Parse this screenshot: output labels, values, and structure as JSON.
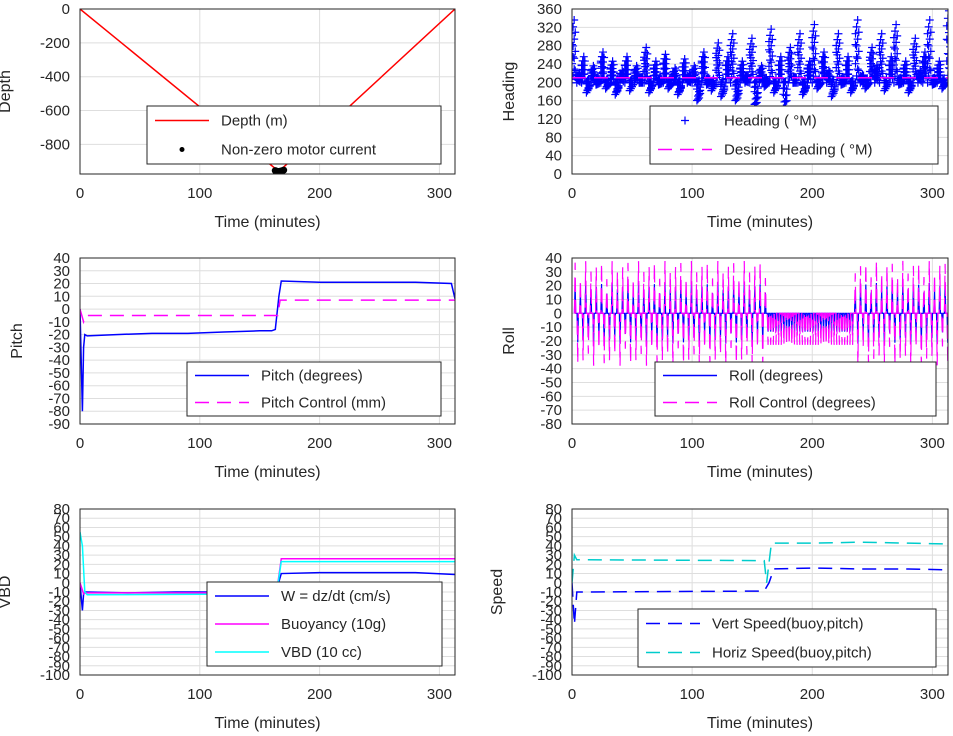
{
  "figure": {
    "background": "#ffffff",
    "axes_color": "#262626",
    "grid_color": "#dedede",
    "plot_bg": "#ffffff"
  },
  "chart_data": [
    {
      "id": "depth",
      "type": "line",
      "xlabel": "Time (minutes)",
      "ylabel": "Depth",
      "xlim": [
        0,
        313
      ],
      "ylim": [
        -975,
        0
      ],
      "xticks": [
        0,
        100,
        200,
        300
      ],
      "yticks": [
        0,
        -200,
        -400,
        -600,
        -800
      ],
      "ytick_labels": [
        "0",
        "-200",
        "-400",
        "-600",
        "-800"
      ],
      "grid": true,
      "legend_position": "bottom-center",
      "legend": [
        "Depth (m)",
        "Non-zero motor current"
      ],
      "series": [
        {
          "name": "Depth (m)",
          "style": "solid",
          "color": "#ff0000",
          "x": [
            0,
            166,
            313
          ],
          "y": [
            0,
            -960,
            0
          ]
        },
        {
          "name": "Non-zero motor current",
          "style": "dots",
          "color": "#000000",
          "x": [
            163,
            164,
            165,
            166,
            167,
            168,
            169,
            170
          ],
          "y": [
            -955,
            -958,
            -960,
            -960,
            -959,
            -957,
            -955,
            -952
          ]
        }
      ]
    },
    {
      "id": "heading",
      "type": "scatter",
      "xlabel": "Time (minutes)",
      "ylabel": "Heading",
      "xlim": [
        0,
        313
      ],
      "ylim": [
        0,
        360
      ],
      "xticks": [
        0,
        100,
        200,
        300
      ],
      "yticks": [
        0,
        40,
        80,
        120,
        160,
        200,
        240,
        280,
        320,
        360
      ],
      "ytick_labels": [
        "0",
        "40",
        "80",
        "120",
        "160",
        "200",
        "240",
        "280",
        "320",
        "360"
      ],
      "grid": true,
      "legend_position": "bottom-right",
      "legend": [
        "Heading ( °M)",
        "Desired Heading ( °M)"
      ],
      "series": [
        {
          "name": "Heading ( °M)",
          "style": "plus",
          "color": "#0000ff",
          "x": [
            0,
            4,
            8,
            12,
            16,
            20,
            24,
            28,
            32,
            36,
            40,
            44,
            48,
            52,
            56,
            60,
            64,
            68,
            72,
            76,
            80,
            84,
            88,
            92,
            96,
            100,
            104,
            108,
            112,
            116,
            120,
            124,
            128,
            132,
            136,
            140,
            144,
            148,
            152,
            156,
            160,
            164,
            168,
            172,
            176,
            180,
            184,
            188,
            192,
            196,
            200,
            204,
            208,
            212,
            216,
            220,
            224,
            228,
            232,
            236,
            240,
            244,
            248,
            252,
            256,
            260,
            264,
            268,
            272,
            276,
            280,
            284,
            288,
            292,
            296,
            300,
            304,
            308,
            312
          ],
          "y": [
            330,
            215,
            250,
            180,
            230,
            200,
            260,
            190,
            240,
            175,
            220,
            250,
            185,
            230,
            205,
            270,
            180,
            240,
            200,
            255,
            190,
            225,
            175,
            245,
            210,
            230,
            160,
            260,
            200,
            185,
            280,
            170,
            250,
            300,
            160,
            240,
            210,
            290,
            150,
            230,
            195,
            310,
            180,
            250,
            140,
            270,
            205,
            300,
            175,
            240,
            320,
            190,
            260,
            220,
            170,
            300,
            200,
            250,
            180,
            330,
            210,
            190,
            270,
            230,
            300,
            185,
            250,
            320,
            200,
            240,
            180,
            290,
            220,
            260,
            330,
            200,
            240,
            190,
            350
          ]
        },
        {
          "name": "Desired Heading ( °M)",
          "style": "dashed",
          "color": "#ff00ff",
          "x": [
            0,
            313
          ],
          "y": [
            210,
            210
          ]
        }
      ]
    },
    {
      "id": "pitch",
      "type": "line",
      "xlabel": "Time (minutes)",
      "ylabel": "Pitch",
      "xlim": [
        0,
        313
      ],
      "ylim": [
        -90,
        40
      ],
      "xticks": [
        0,
        100,
        200,
        300
      ],
      "yticks": [
        40,
        30,
        20,
        10,
        0,
        -10,
        -20,
        -30,
        -40,
        -50,
        -60,
        -70,
        -80,
        -90
      ],
      "ytick_labels": [
        "40",
        "30",
        "20",
        "10",
        "0",
        "-10",
        "-20",
        "-30",
        "-40",
        "-50",
        "-60",
        "-70",
        "-80",
        "-90"
      ],
      "grid": true,
      "legend_position": "bottom-right",
      "legend": [
        "Pitch (degrees)",
        "Pitch Control (mm)"
      ],
      "series": [
        {
          "name": "Pitch (degrees)",
          "style": "solid",
          "color": "#0000ff",
          "x": [
            0,
            2,
            3,
            4,
            6,
            30,
            60,
            90,
            120,
            150,
            160,
            163,
            166,
            168,
            200,
            240,
            280,
            310,
            313
          ],
          "y": [
            0,
            -80,
            -30,
            -20,
            -21,
            -20,
            -19,
            -19,
            -18,
            -17,
            -17,
            -16,
            10,
            22,
            21,
            21,
            21,
            20,
            8
          ]
        },
        {
          "name": "Pitch Control (mm)",
          "style": "dashed",
          "color": "#ff00ff",
          "x": [
            0,
            3,
            5,
            165,
            167,
            313
          ],
          "y": [
            0,
            -10,
            -5,
            -5,
            7,
            7
          ]
        }
      ]
    },
    {
      "id": "roll",
      "type": "line",
      "xlabel": "Time (minutes)",
      "ylabel": "Roll",
      "xlim": [
        0,
        313
      ],
      "ylim": [
        -80,
        40
      ],
      "xticks": [
        0,
        100,
        200,
        300
      ],
      "yticks": [
        40,
        30,
        20,
        10,
        0,
        -10,
        -20,
        -30,
        -40,
        -50,
        -60,
        -70,
        -80
      ],
      "ytick_labels": [
        "40",
        "30",
        "20",
        "10",
        "0",
        "-10",
        "-20",
        "-30",
        "-40",
        "-50",
        "-60",
        "-70",
        "-80"
      ],
      "grid": true,
      "legend_position": "bottom-right",
      "legend": [
        "Roll (degrees)",
        "Roll Control (degrees)"
      ],
      "series": [
        {
          "name": "Roll (degrees)",
          "style": "solid",
          "color": "#0000ff",
          "x": [
            0,
            313
          ],
          "y": [
            0,
            0
          ],
          "spike_amplitude": 22
        },
        {
          "name": "Roll Control (degrees)",
          "style": "dashed",
          "color": "#ff00ff",
          "x": [
            0,
            313
          ],
          "y": [
            0,
            0
          ],
          "spike_amplitude": 38
        }
      ]
    },
    {
      "id": "vbd",
      "type": "line",
      "xlabel": "Time (minutes)",
      "ylabel": "VBD",
      "xlim": [
        0,
        313
      ],
      "ylim": [
        -100,
        80
      ],
      "xticks": [
        0,
        100,
        200,
        300
      ],
      "yticks": [
        80,
        70,
        60,
        50,
        40,
        30,
        20,
        10,
        0,
        -10,
        -20,
        -30,
        -40,
        -50,
        -60,
        -70,
        -80,
        -90,
        -100
      ],
      "ytick_labels": [
        "80",
        "70",
        "60",
        "50",
        "40",
        "30",
        "20",
        "10",
        "0",
        "-10",
        "-20",
        "-30",
        "-40",
        "-50",
        "-60",
        "-70",
        "-80",
        "-90",
        "-100"
      ],
      "grid": true,
      "legend_position": "bottom-right",
      "legend": [
        "W = dz/dt (cm/s)",
        "Buoyancy (10g)",
        "VBD (10 cc)"
      ],
      "series": [
        {
          "name": "W = dz/dt (cm/s)",
          "style": "solid",
          "color": "#0000ff",
          "x": [
            0,
            2,
            3,
            5,
            40,
            80,
            120,
            160,
            164,
            168,
            200,
            240,
            280,
            313
          ],
          "y": [
            0,
            -30,
            -12,
            -10,
            -11,
            -10,
            -10,
            -10,
            -8,
            10,
            11,
            11,
            11,
            9
          ]
        },
        {
          "name": "Buoyancy (10g)",
          "style": "solid",
          "color": "#ff00ff",
          "x": [
            0,
            3,
            5,
            164,
            168,
            313
          ],
          "y": [
            0,
            -12,
            -11,
            -11,
            26,
            26
          ]
        },
        {
          "name": "VBD (10 cc)",
          "style": "solid",
          "color": "#00ffff",
          "x": [
            0,
            2,
            4,
            6,
            164,
            168,
            313
          ],
          "y": [
            55,
            40,
            -10,
            -13,
            -12,
            23,
            23
          ]
        }
      ]
    },
    {
      "id": "speed",
      "type": "line",
      "xlabel": "Time (minutes)",
      "ylabel": "Speed",
      "xlim": [
        0,
        313
      ],
      "ylim": [
        -100,
        80
      ],
      "xticks": [
        0,
        100,
        200,
        300
      ],
      "yticks": [
        80,
        70,
        60,
        50,
        40,
        30,
        20,
        10,
        0,
        -10,
        -20,
        -30,
        -40,
        -50,
        -60,
        -70,
        -80,
        -90,
        -100
      ],
      "ytick_labels": [
        "80",
        "70",
        "60",
        "50",
        "40",
        "30",
        "20",
        "10",
        "0",
        "-10",
        "-20",
        "-30",
        "-40",
        "-50",
        "-60",
        "-70",
        "-80",
        "-90",
        "-100"
      ],
      "grid": true,
      "legend_position": "bottom-right",
      "legend": [
        "Vert Speed(buoy,pitch)",
        "Horiz Speed(buoy,pitch)"
      ],
      "series": [
        {
          "name": "Vert Speed(buoy,pitch)",
          "style": "dashed",
          "color": "#0000ff",
          "x": [
            0,
            2,
            4,
            6,
            160,
            164,
            168,
            200,
            240,
            280,
            313
          ],
          "y": [
            0,
            -45,
            -10,
            -10,
            -9,
            0,
            15,
            16,
            15,
            15,
            14
          ]
        },
        {
          "name": "Horiz Speed(buoy,pitch)",
          "style": "dashed",
          "color": "#00cccc",
          "x": [
            0,
            2,
            4,
            6,
            160,
            162,
            166,
            200,
            240,
            280,
            313
          ],
          "y": [
            0,
            30,
            25,
            25,
            24,
            0,
            43,
            43,
            44,
            43,
            42
          ]
        }
      ]
    }
  ]
}
